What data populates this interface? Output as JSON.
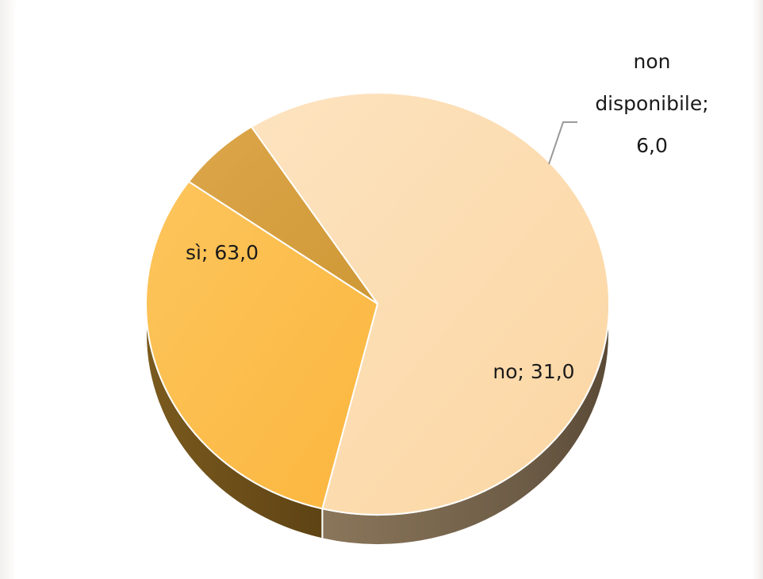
{
  "chart_data": {
    "type": "pie",
    "title": "",
    "slices": [
      {
        "label": "sì",
        "value": 63.0,
        "display": "sì; 63,0",
        "color": "#fcd9aa"
      },
      {
        "label": "no",
        "value": 31.0,
        "display": "no; 31,0",
        "color": "#fdbd4c"
      },
      {
        "label": "non disponibile",
        "value": 6.0,
        "display_lines": [
          "non",
          "disponibile;",
          "6,0"
        ],
        "color": "#d6a03e"
      }
    ],
    "style": "3d-exploded",
    "legend": "none"
  }
}
